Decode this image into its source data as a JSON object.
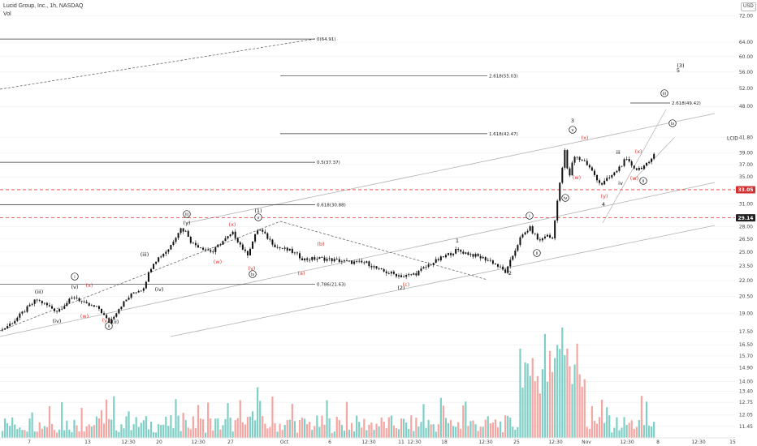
{
  "header": {
    "title": "Lucid Group, Inc., 1h, NASDAQ",
    "sub": "Vol"
  },
  "currency": "USD",
  "symbol_label": "LCID",
  "colors": {
    "up": "#26a69a",
    "down": "#ef5350",
    "vol_up": "#7fcfc6",
    "vol_down": "#f4a6a3",
    "red_line": "#e53935",
    "price_badge": "#d32f2f",
    "price_badge2": "#222222",
    "wave_red": "#e53935",
    "channel": "#b0b0b0"
  },
  "chart_data": {
    "type": "candlestick",
    "title": "Lucid Group, Inc., 1h, NASDAQ",
    "y_scale": "log",
    "ylim": [
      10.5,
      82
    ],
    "y_ticks": [
      "72.00",
      "64.00",
      "60.00",
      "56.00",
      "52.00",
      "48.00",
      "41.80",
      "39.00",
      "37.00",
      "35.00",
      "31.00",
      "28.00",
      "26.50",
      "25.00",
      "23.50",
      "22.00",
      "20.50",
      "19.00",
      "17.50",
      "16.50",
      "15.70",
      "14.90",
      "14.00",
      "13.40",
      "12.75",
      "12.05",
      "11.45"
    ],
    "x_ticks": [
      "7",
      "13",
      "12:30",
      "20",
      "12:30",
      "27",
      "Oct",
      "6",
      "12:30",
      "11",
      "12:30",
      "18",
      "12:30",
      "25",
      "12:30",
      "Nov",
      "12:30",
      "8",
      "12:30",
      "15"
    ],
    "price_badges": [
      {
        "value": "33.05",
        "color": "red"
      },
      {
        "value": "29.14",
        "color": "dark"
      }
    ],
    "fib_levels": [
      {
        "label": "0(64.91)",
        "value": 64.91
      },
      {
        "label": "2.618(55.03)",
        "value": 55.03
      },
      {
        "label": "1.618(42.47)",
        "value": 42.47
      },
      {
        "label": "0.5(37.37)",
        "value": 37.37
      },
      {
        "label": "0.618(30.88)",
        "value": 30.88
      },
      {
        "label": "0.786(21.63)",
        "value": 21.63
      },
      {
        "label": "2.618(49.42)",
        "value": 49.42
      }
    ],
    "horizontal_dashed": [
      33.05,
      29.14
    ],
    "wave_labels": [
      {
        "t": "(iii)",
        "c": "k"
      },
      {
        "t": "(v)",
        "c": "k"
      },
      {
        "t": "i",
        "c": "k",
        "circled": true
      },
      {
        "t": "(x)",
        "c": "r"
      },
      {
        "t": "(iv)",
        "c": "k"
      },
      {
        "t": "(w)",
        "c": "r"
      },
      {
        "t": "(y)",
        "c": "r"
      },
      {
        "t": "(ii)",
        "c": "k"
      },
      {
        "t": "ii",
        "c": "k",
        "circled": true
      },
      {
        "t": "(iii)",
        "c": "k"
      },
      {
        "t": "(iv)",
        "c": "k"
      },
      {
        "t": "iii",
        "c": "k",
        "circled": true
      },
      {
        "t": "(y)",
        "c": "k"
      },
      {
        "t": "(x)",
        "c": "r"
      },
      {
        "t": "(w)",
        "c": "r"
      },
      {
        "t": "(1)",
        "c": "k"
      },
      {
        "t": "v",
        "c": "k",
        "circled": true
      },
      {
        "t": "(y)",
        "c": "r"
      },
      {
        "t": "iv",
        "c": "k",
        "circled": true
      },
      {
        "t": "(b)",
        "c": "r"
      },
      {
        "t": "(a)",
        "c": "r"
      },
      {
        "t": "(2)",
        "c": "k"
      },
      {
        "t": "(c)",
        "c": "r"
      },
      {
        "t": "1",
        "c": "k"
      },
      {
        "t": "2",
        "c": "k"
      },
      {
        "t": "i",
        "c": "k",
        "circled": true
      },
      {
        "t": "ii",
        "c": "k",
        "circled": true
      },
      {
        "t": "3",
        "c": "k"
      },
      {
        "t": "v",
        "c": "k",
        "circled": true
      },
      {
        "t": "(x)",
        "c": "r"
      },
      {
        "t": "(w)",
        "c": "r"
      },
      {
        "t": "iv",
        "c": "k",
        "circled": true
      },
      {
        "t": "(y)",
        "c": "r"
      },
      {
        "t": "4",
        "c": "k"
      },
      {
        "t": "iii",
        "c": "k"
      },
      {
        "t": "iv",
        "c": "k"
      },
      {
        "t": "(x)",
        "c": "r"
      },
      {
        "t": "(w)",
        "c": "r"
      },
      {
        "t": "ii",
        "c": "k",
        "circled": true
      },
      {
        "t": "(3)",
        "c": "k"
      },
      {
        "t": "5",
        "c": "k"
      },
      {
        "t": "iii",
        "c": "k",
        "circled": true
      },
      {
        "t": "iv",
        "c": "k",
        "circled": true
      }
    ]
  }
}
